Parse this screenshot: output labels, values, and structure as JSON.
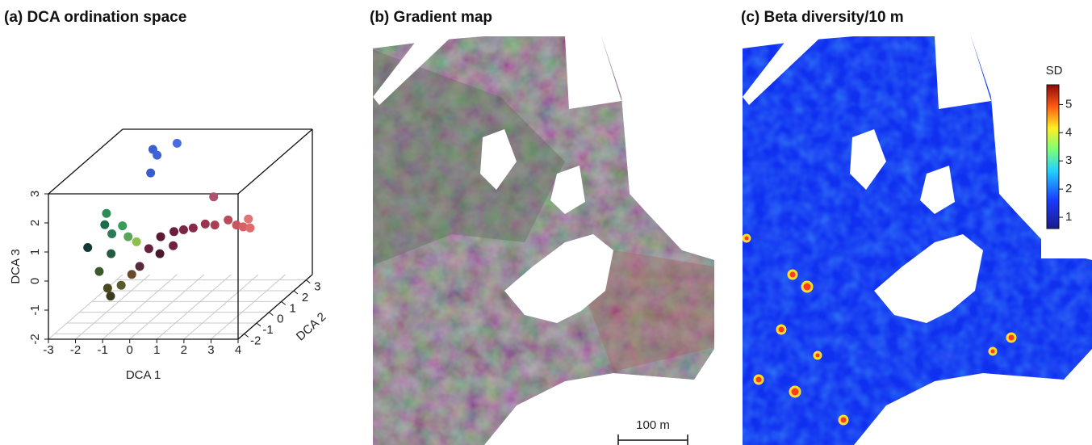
{
  "chart_data": [
    {
      "type": "scatter3d",
      "title": "(a) DCA ordination space",
      "xlabel": "DCA 1",
      "ylabel": "DCA 2",
      "zlabel": "DCA 3",
      "xlim": [
        -3,
        4
      ],
      "ylim": [
        -2.5,
        3.5
      ],
      "zlim": [
        -2,
        3
      ],
      "xticks": [
        -3,
        -2,
        -1,
        0,
        1,
        2,
        3,
        4
      ],
      "yticks": [
        -2,
        -1,
        0,
        1,
        2,
        3
      ],
      "zticks": [
        -2,
        -1,
        0,
        1,
        2,
        3
      ],
      "grid": true,
      "x": [
        -1.2,
        -1.0,
        -0.4,
        -1.1,
        -2.0,
        -2.2,
        -2.6,
        -1.8,
        -1.5,
        -1.2,
        -0.8,
        -1.6,
        -1.9,
        -1.5,
        -1.3,
        -1.0,
        -0.7,
        -0.5,
        -0.3,
        0,
        0.4,
        0.8,
        1.2,
        1.6,
        2.0,
        2.4,
        2.8,
        3.0,
        3.3,
        3.1,
        1.5,
        0.2,
        0.6
      ],
      "y": [
        2,
        1.9,
        2.2,
        1.6,
        0,
        0.3,
        -0.2,
        0,
        0.2,
        0,
        -0.2,
        -0.5,
        -0.8,
        -1,
        -1.2,
        -1.0,
        -0.8,
        -0.6,
        -0.3,
        0,
        0.2,
        0.1,
        0,
        0.1,
        0,
        0.2,
        0,
        0.1,
        0,
        0.3,
        1.0,
        -0.5,
        -0.3
      ],
      "z": [
        2.86,
        2.7,
        3.0,
        2.2,
        1.4,
        0.9,
        0.3,
        0.7,
        0.9,
        0.6,
        0.5,
        0.2,
        -0.3,
        -0.8,
        -1.0,
        -0.7,
        -0.4,
        -0.2,
        0.3,
        0.6,
        0.7,
        0.8,
        0.9,
        1.0,
        1.0,
        1.1,
        1.0,
        0.9,
        0.9,
        1.1,
        1.6,
        0.2,
        0.4
      ],
      "colors": [
        "#3a5fd0",
        "#3f63d8",
        "#4a6be0",
        "#3b5ccc",
        "#2e8b57",
        "#1f6e4a",
        "#0f3b33",
        "#2d7a5a",
        "#3a9b5a",
        "#5aa55a",
        "#8cc24a",
        "#245c3f",
        "#3a5a2a",
        "#4a4a20",
        "#3c3a1c",
        "#5a5a2a",
        "#6a4a2a",
        "#5a2a3a",
        "#6b2040",
        "#5a1a35",
        "#6a1f3f",
        "#7a2545",
        "#8a2a4a",
        "#9a3550",
        "#a84055",
        "#b84a5a",
        "#c85560",
        "#d86065",
        "#e06a6a",
        "#e07575",
        "#b05070",
        "#4a1a30",
        "#702040"
      ]
    },
    {
      "type": "image",
      "title": "(b) Gradient map",
      "scale_bar_label": "100 m"
    },
    {
      "type": "heatmap",
      "title": "(c) Beta diversity/10 m",
      "colorbar_label": "SD",
      "colorbar_lim": [
        0.6,
        5.7
      ],
      "colorbar_ticks": [
        1,
        2,
        3,
        4,
        5
      ]
    }
  ]
}
